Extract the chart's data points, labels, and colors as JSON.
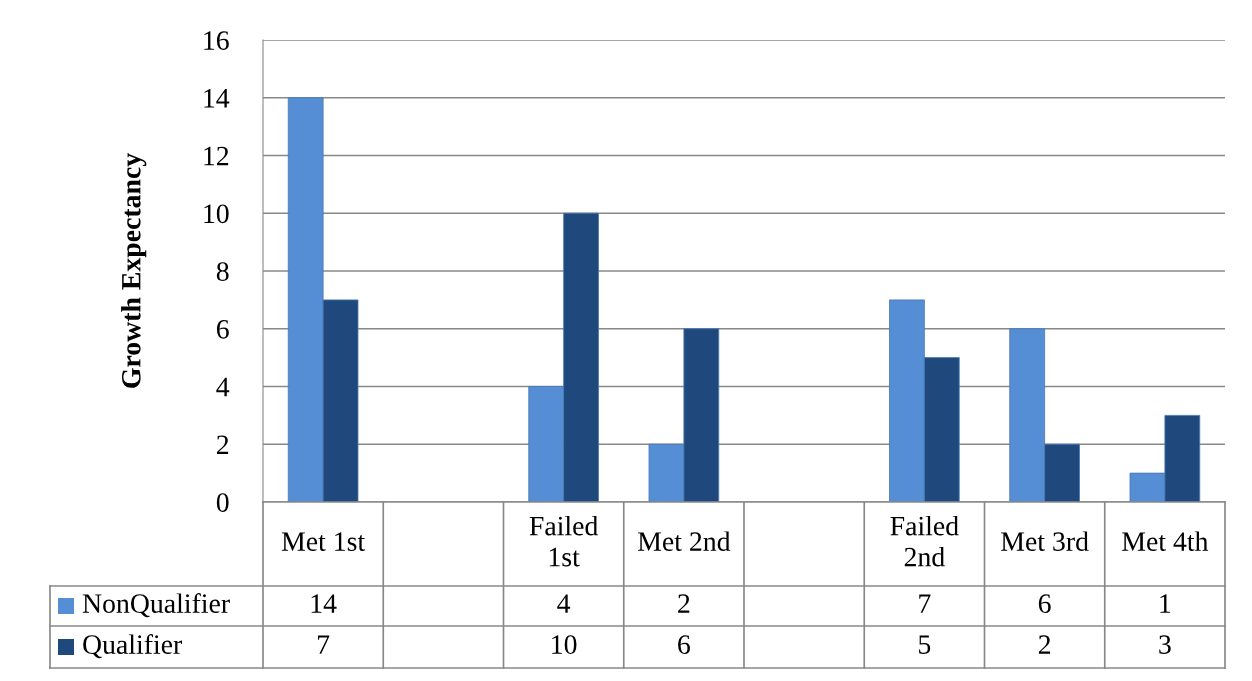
{
  "chart_data": {
    "type": "bar",
    "ylabel": "Growth Expectancy",
    "categories": [
      "Met 1st",
      null,
      "Failed 1st",
      "Met 2nd",
      null,
      "Failed 2nd",
      "Met 3rd",
      "Met 4th"
    ],
    "series": [
      {
        "name": "NonQualifier",
        "color": "#558ed5",
        "values": [
          14,
          null,
          4,
          2,
          null,
          7,
          6,
          1
        ]
      },
      {
        "name": "Qualifier",
        "color": "#1f497d",
        "values": [
          7,
          null,
          10,
          6,
          null,
          5,
          2,
          3
        ]
      }
    ],
    "ylim": [
      0,
      16
    ],
    "yticks": [
      0,
      2,
      4,
      6,
      8,
      10,
      12,
      14,
      16
    ],
    "grid": "y",
    "data_labels": true,
    "legend": "bottom"
  }
}
